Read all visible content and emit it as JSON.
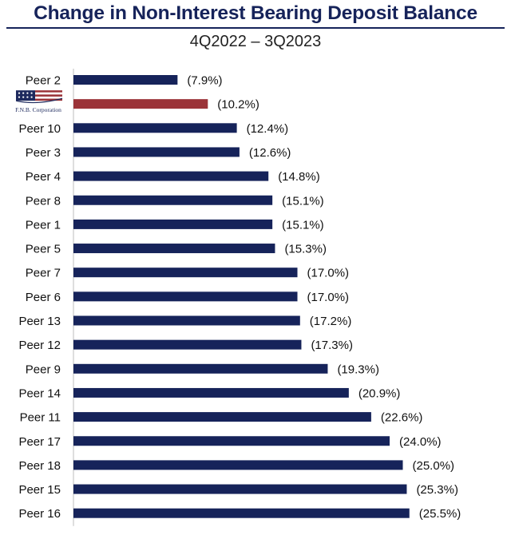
{
  "header": {
    "title": "Change in Non-Interest Bearing Deposit Balance",
    "subtitle": "4Q2022 – 3Q2023"
  },
  "colors": {
    "bar": "#16235a",
    "highlight": "#9b3338",
    "axis": "#bdbdbd"
  },
  "chart_data": {
    "type": "bar",
    "orientation": "horizontal",
    "title": "Change in Non-Interest Bearing Deposit Balance",
    "subtitle": "4Q2022 – 3Q2023",
    "categories": [
      "Peer 2",
      "F.N.B. Corporation",
      "Peer 10",
      "Peer 3",
      "Peer 4",
      "Peer 8",
      "Peer 1",
      "Peer 5",
      "Peer 7",
      "Peer 6",
      "Peer 13",
      "Peer 12",
      "Peer 9",
      "Peer 14",
      "Peer 11",
      "Peer 17",
      "Peer 18",
      "Peer 15",
      "Peer 16"
    ],
    "values": [
      -7.9,
      -10.2,
      -12.4,
      -12.6,
      -14.8,
      -15.1,
      -15.1,
      -15.3,
      -17.0,
      -17.0,
      -17.2,
      -17.3,
      -19.3,
      -20.9,
      -22.6,
      -24.0,
      -25.0,
      -25.3,
      -25.5
    ],
    "labels": [
      "(7.9%)",
      "(10.2%)",
      "(12.4%)",
      "(12.6%)",
      "(14.8%)",
      "(15.1%)",
      "(15.1%)",
      "(15.3%)",
      "(17.0%)",
      "(17.0%)",
      "(17.2%)",
      "(17.3%)",
      "(19.3%)",
      "(20.9%)",
      "(22.6%)",
      "(24.0%)",
      "(25.0%)",
      "(25.3%)",
      "(25.5%)"
    ],
    "highlight": "F.N.B. Corporation",
    "logo_category": "F.N.B. Corporation",
    "units": "%",
    "xlabel": "",
    "ylabel": "",
    "grid": false,
    "legend": "none"
  }
}
